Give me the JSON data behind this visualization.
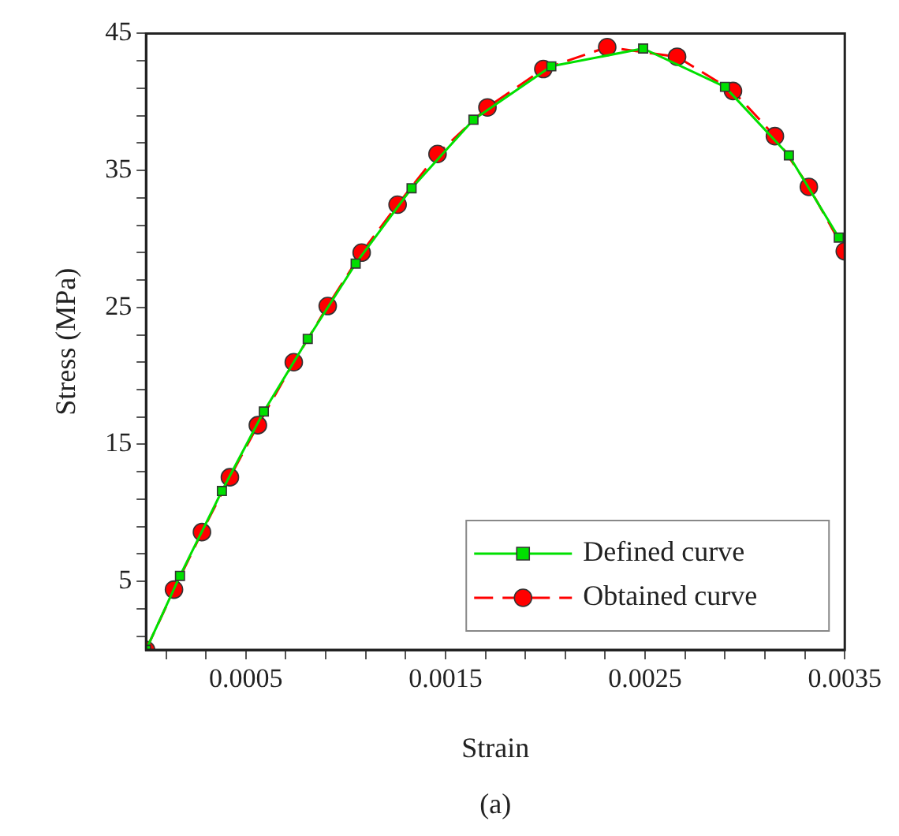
{
  "chart_data": {
    "type": "line",
    "xlabel": "Strain",
    "ylabel": "Stress (MPa)",
    "annotations": [
      "(a)"
    ],
    "xlim": [
      0,
      0.0035
    ],
    "ylim": [
      0,
      45
    ],
    "xticks": [
      {
        "value": 0.0001,
        "label": null
      },
      {
        "value": 0.0003,
        "label": null
      },
      0.0005,
      {
        "value": 0.0007,
        "label": null
      },
      {
        "value": 0.0009,
        "label": null
      },
      {
        "value": 0.0011,
        "label": null
      },
      {
        "value": 0.0013,
        "label": null
      },
      0.0015,
      {
        "value": 0.0017,
        "label": null
      },
      {
        "value": 0.0019,
        "label": null
      },
      {
        "value": 0.0021,
        "label": null
      },
      {
        "value": 0.0023,
        "label": null
      },
      0.0025,
      {
        "value": 0.0027,
        "label": null
      },
      {
        "value": 0.0029,
        "label": null
      },
      {
        "value": 0.0031,
        "label": null
      },
      {
        "value": 0.0033,
        "label": null
      },
      0.0035
    ],
    "yticks": [
      {
        "value": 1,
        "label": null
      },
      {
        "value": 3,
        "label": null
      },
      5,
      {
        "value": 7,
        "label": null
      },
      {
        "value": 9,
        "label": null
      },
      {
        "value": 11,
        "label": null
      },
      {
        "value": 13,
        "label": null
      },
      15,
      {
        "value": 17,
        "label": null
      },
      {
        "value": 19,
        "label": null
      },
      {
        "value": 21,
        "label": null
      },
      {
        "value": 23,
        "label": null
      },
      25,
      {
        "value": 27,
        "label": null
      },
      {
        "value": 29,
        "label": null
      },
      {
        "value": 31,
        "label": null
      },
      {
        "value": 33,
        "label": null
      },
      35,
      {
        "value": 37,
        "label": null
      },
      {
        "value": 39,
        "label": null
      },
      {
        "value": 41,
        "label": null
      },
      {
        "value": 43,
        "label": null
      },
      45
    ],
    "legend": "bottom right",
    "series": [
      {
        "name": "Defined curve",
        "color": "#00e000",
        "marker": "square",
        "line_style": "solid",
        "x": [
          0,
          0.00017,
          0.00038,
          0.00059,
          0.00081,
          0.00105,
          0.00133,
          0.00164,
          0.00203,
          0.00249,
          0.0029,
          0.00322,
          0.00347
        ],
        "values": [
          0,
          5.4,
          11.6,
          17.4,
          22.7,
          28.2,
          33.7,
          38.7,
          42.6,
          43.9,
          41.1,
          36.1,
          30.1
        ]
      },
      {
        "name": "Obtained curve",
        "color": "#ff0000",
        "marker": "circle",
        "line_style": "dashed",
        "x": [
          0,
          0.00014,
          0.00028,
          0.00042,
          0.00056,
          0.00074,
          0.00091,
          0.00108,
          0.00126,
          0.00146,
          0.00171,
          0.00199,
          0.00231,
          0.00266,
          0.00294,
          0.00315,
          0.00332,
          0.0035
        ],
        "values": [
          0,
          4.4,
          8.6,
          12.6,
          16.4,
          21.0,
          25.1,
          29.0,
          32.5,
          36.2,
          39.6,
          42.4,
          44.0,
          43.3,
          40.8,
          37.5,
          33.8,
          29.1
        ]
      }
    ]
  }
}
